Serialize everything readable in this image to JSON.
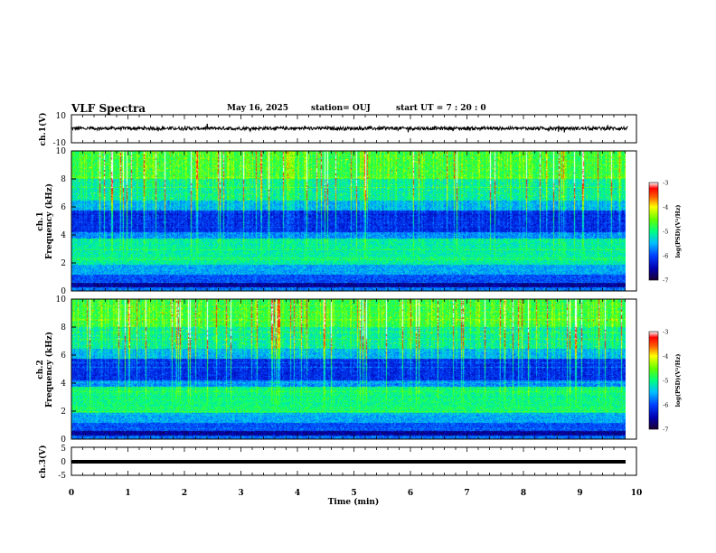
{
  "header": {
    "title": "VLF Spectra",
    "date": "May 16, 2025",
    "station": "station= OUJ",
    "start_ut": "start  UT =   7 : 20 : 0"
  },
  "colors": {
    "colormap": [
      "#1a0030",
      "#00007a",
      "#0000ff",
      "#0080ff",
      "#00ffff",
      "#00ff80",
      "#40ff00",
      "#ffff00",
      "#ff8000",
      "#ff0000",
      "#ffffff"
    ],
    "trace": "#000000"
  },
  "chart_data": [
    {
      "type": "line",
      "ylabel": "ch.1(V)",
      "ylim": [
        -10,
        10
      ],
      "yticks": [
        "10",
        "-10"
      ],
      "description_values": "noisy waveform centered near 0 V, amplitude about ±1.5 V",
      "y_mean": 0.3,
      "y_noise": 1.2,
      "xlim": [
        0,
        10
      ]
    },
    {
      "type": "heatmap",
      "ylabel": "ch.1\nFrequency (kHz)",
      "ylim": [
        0,
        10
      ],
      "yticks": [
        "0",
        "2",
        "4",
        "6",
        "8",
        "10"
      ],
      "xlim": [
        0,
        9.85
      ],
      "colorbar": {
        "label": "log(PSD)(V²/Hz)",
        "range": [
          -7,
          -3
        ],
        "ticks": [
          "-3",
          "-4",
          "-5",
          "-6",
          "-7"
        ]
      }
    },
    {
      "type": "heatmap",
      "ylabel": "ch.2\nFrequency (kHz)",
      "ylim": [
        0,
        10
      ],
      "yticks": [
        "0",
        "2",
        "4",
        "6",
        "8",
        "10"
      ],
      "xlim": [
        0,
        9.85
      ],
      "colorbar": {
        "label": "log(PSD)(V²/Hz)",
        "range": [
          -7,
          -3
        ],
        "ticks": [
          "-3",
          "-4",
          "-5",
          "-6",
          "-7"
        ]
      }
    },
    {
      "type": "line",
      "ylabel": "ch.3(V)",
      "ylim": [
        -5,
        5
      ],
      "yticks": [
        "5",
        "0",
        "-5"
      ],
      "y_mean": 0,
      "y_noise": 0.25,
      "xlim": [
        0,
        10
      ]
    }
  ],
  "xaxis": {
    "label": "Time (min)",
    "ticks": [
      "0",
      "1",
      "2",
      "3",
      "4",
      "5",
      "6",
      "7",
      "8",
      "9",
      "10"
    ],
    "range": [
      0,
      10
    ]
  }
}
